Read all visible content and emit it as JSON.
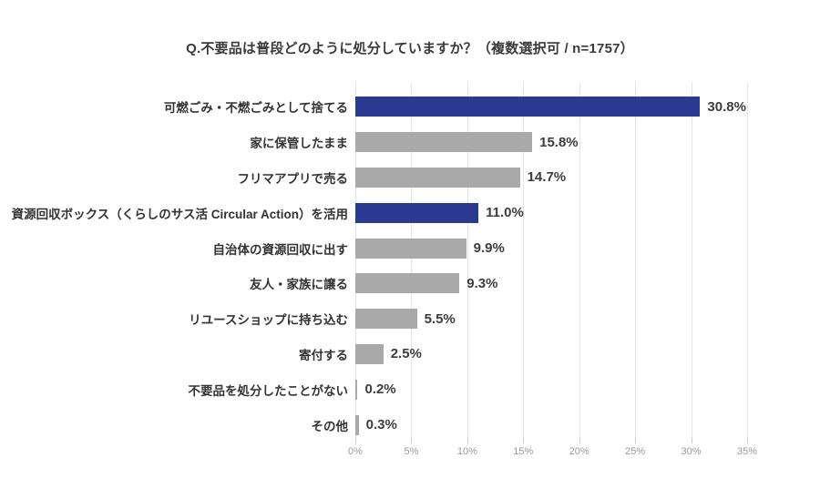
{
  "title": "Q.不要品は普段どのように処分していますか？（複数選択可 / n=1757）",
  "chart_data": {
    "type": "bar",
    "orientation": "horizontal",
    "title": "Q.不要品は普段どのように処分していますか？（複数選択可 / n=1757）",
    "n": 1757,
    "categories": [
      "可燃ごみ・不燃ごみとして捨てる",
      "家に保管したまま",
      "フリマアプリで売る",
      "資源回収ボックス（くらしのサス活 Circular Action）を活用",
      "自治体の資源回収に出す",
      "友人・家族に譲る",
      "リユースショップに持ち込む",
      "寄付する",
      "不要品を処分したことがない",
      "その他"
    ],
    "values": [
      30.8,
      15.8,
      14.7,
      11.0,
      9.9,
      9.3,
      5.5,
      2.5,
      0.2,
      0.3
    ],
    "value_labels": [
      "30.8%",
      "15.8%",
      "14.7%",
      "11.0%",
      "9.9%",
      "9.3%",
      "5.5%",
      "2.5%",
      "0.2%",
      "0.3%"
    ],
    "highlight_indices": [
      0,
      3
    ],
    "colors": {
      "bar_default": "#a9a9a9",
      "bar_highlight": "#2b3990"
    },
    "xlabel": "",
    "ylabel": "",
    "xlim": [
      0,
      35
    ],
    "x_ticks": [
      "0%",
      "5%",
      "10%",
      "15%",
      "20%",
      "25%",
      "30%",
      "35%"
    ],
    "x_tick_values": [
      0,
      5,
      10,
      15,
      20,
      25,
      30,
      35
    ],
    "grid": "vertical",
    "legend": "none"
  }
}
